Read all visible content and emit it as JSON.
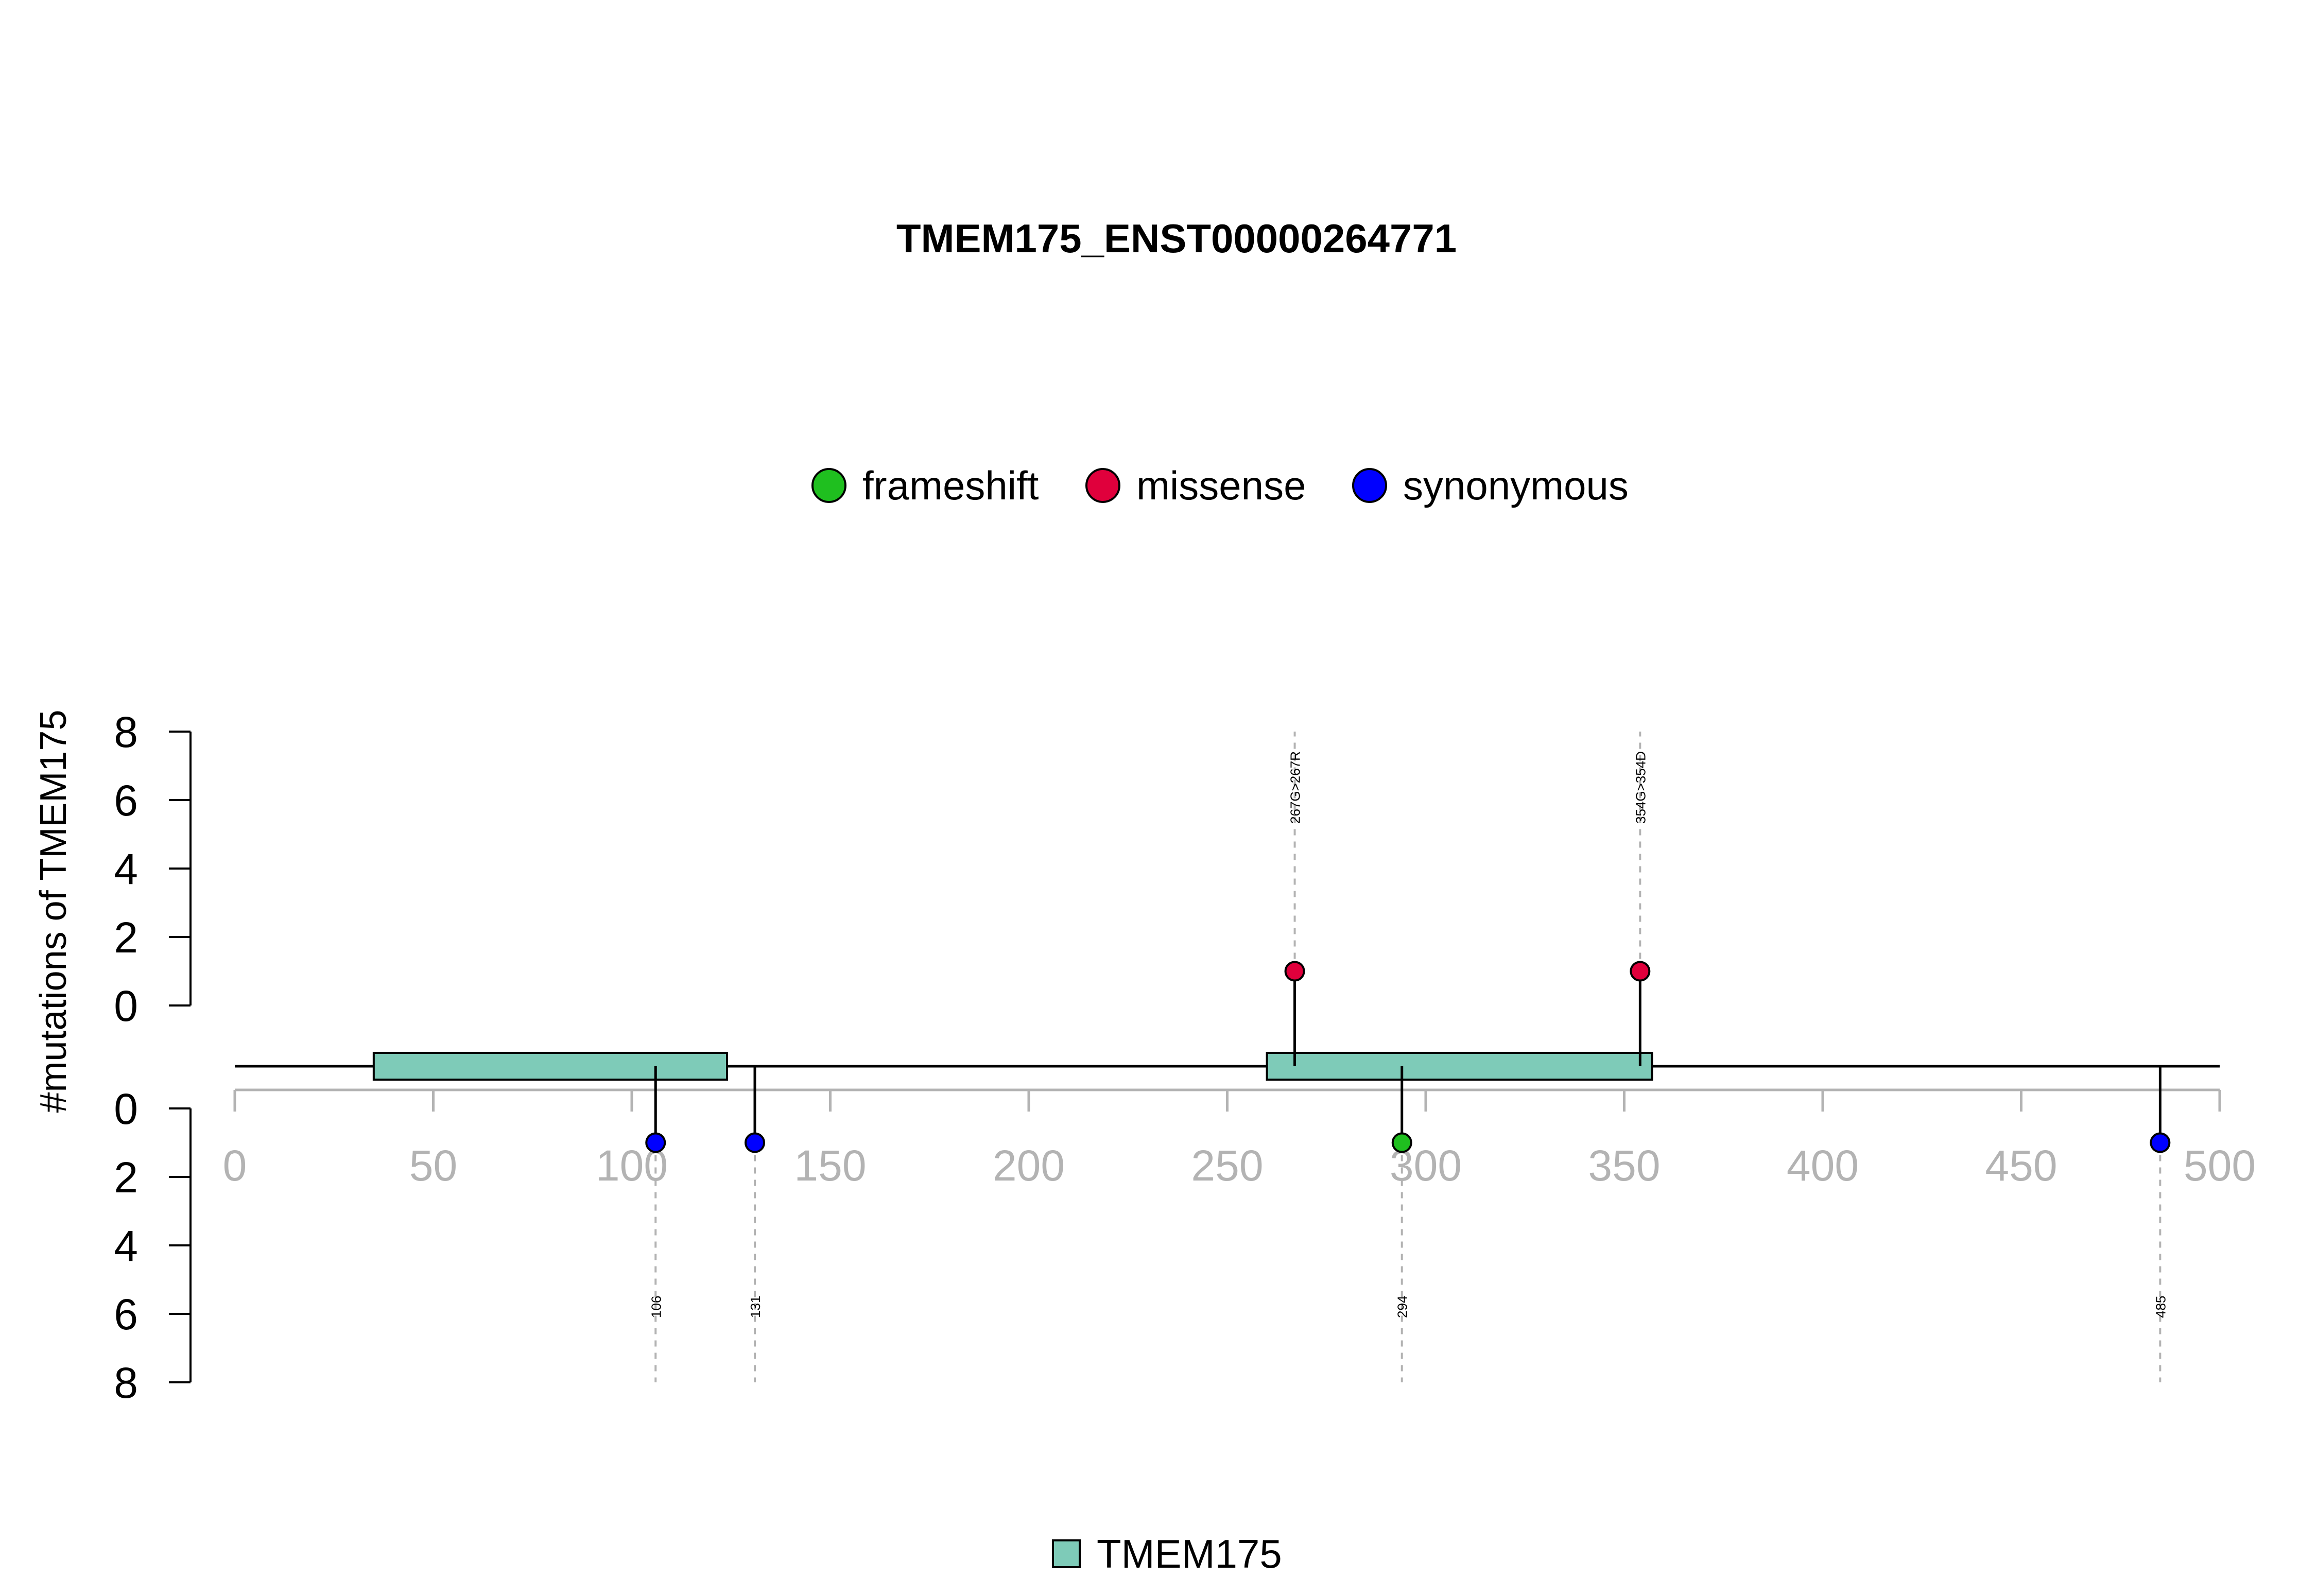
{
  "chart_data": {
    "type": "lollipop",
    "title": "TMEM175_ENST00000264771",
    "ylabel": "#mutations of TMEM175",
    "xlim": [
      0,
      500
    ],
    "x_ticks": [
      0,
      50,
      100,
      150,
      200,
      250,
      300,
      350,
      400,
      450,
      500
    ],
    "y_ticks_top": [
      0,
      2,
      4,
      6,
      8
    ],
    "y_ticks_bottom": [
      0,
      2,
      4,
      6,
      8
    ],
    "protein_length": 500,
    "legend": [
      {
        "name": "frameshift",
        "color": "#1fbf1f"
      },
      {
        "name": "missense",
        "color": "#e0003c"
      },
      {
        "name": "synonymous",
        "color": "#0000ff"
      }
    ],
    "domains": [
      {
        "name": "TMEM175",
        "start": 35,
        "end": 124,
        "color": "#7ecbb8"
      },
      {
        "name": "TMEM175",
        "start": 260,
        "end": 357,
        "color": "#7ecbb8"
      }
    ],
    "domain_legend": [
      {
        "name": "TMEM175",
        "color": "#7ecbb8"
      }
    ],
    "mutations_top": [
      {
        "position": 267,
        "count": 1,
        "type": "missense",
        "label": "267G>267R"
      },
      {
        "position": 354,
        "count": 1,
        "type": "missense",
        "label": "354G>354D"
      }
    ],
    "mutations_bottom": [
      {
        "position": 106,
        "count": 1,
        "type": "synonymous",
        "label": "106"
      },
      {
        "position": 131,
        "count": 1,
        "type": "synonymous",
        "label": "131"
      },
      {
        "position": 294,
        "count": 1,
        "type": "frameshift",
        "label": "294"
      },
      {
        "position": 485,
        "count": 1,
        "type": "synonymous",
        "label": "485"
      }
    ]
  }
}
